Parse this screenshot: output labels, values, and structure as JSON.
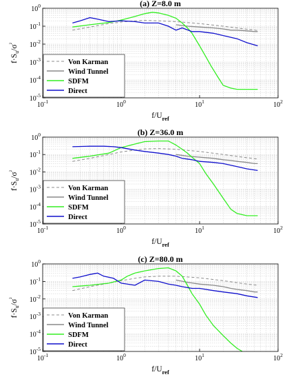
{
  "colors": {
    "von_karman": "#8c8c8c",
    "wind_tunnel": "#8a8a8a",
    "sdfm": "#33ee22",
    "direct": "#1010cc",
    "grid": "#c8c8c8"
  },
  "chart_data": [
    {
      "type": "line",
      "title": "(a) Z=8.0 m",
      "xscale": "log",
      "yscale": "log",
      "xlim": [
        0.1,
        100
      ],
      "ylim": [
        1e-05,
        1
      ],
      "xticks": [
        "10^-1",
        "10^0",
        "10^1",
        "10^2"
      ],
      "yticks": [
        "10^0",
        "10^-1",
        "10^-2",
        "10^-3",
        "10^-4",
        "10^-5"
      ],
      "ylabel": "f·Su/σ²",
      "xlabel": "f/Uref",
      "grid": true,
      "legend": "bottom-left",
      "series": [
        {
          "name": "Von Karman",
          "style": "dashed",
          "x": [
            0.24,
            0.4,
            0.7,
            1,
            1.5,
            2,
            3,
            5,
            10,
            20,
            40,
            55
          ],
          "y": [
            0.06,
            0.09,
            0.14,
            0.17,
            0.2,
            0.21,
            0.2,
            0.18,
            0.14,
            0.1,
            0.068,
            0.058
          ]
        },
        {
          "name": "Wind Tunnel",
          "style": "solid",
          "x": [
            5,
            7,
            10,
            15,
            20,
            25,
            30,
            40,
            50,
            55
          ],
          "y": [
            0.12,
            0.1,
            0.09,
            0.08,
            0.07,
            0.06,
            0.06,
            0.055,
            0.05,
            0.05
          ]
        },
        {
          "name": "SDFM",
          "style": "solid",
          "x": [
            0.24,
            0.4,
            0.7,
            1,
            1.5,
            2,
            2.5,
            3,
            4,
            5,
            6,
            7,
            8,
            10,
            12,
            14,
            17,
            20,
            25,
            30,
            40,
            55
          ],
          "y": [
            0.09,
            0.12,
            0.16,
            0.22,
            0.35,
            0.5,
            0.6,
            0.55,
            0.4,
            0.28,
            0.15,
            0.08,
            0.04,
            0.008,
            0.002,
            0.0006,
            0.00015,
            5e-05,
            3.5e-05,
            3e-05,
            3e-05,
            3e-05
          ]
        },
        {
          "name": "Direct",
          "style": "solid",
          "x": [
            0.24,
            0.3,
            0.4,
            0.5,
            0.7,
            1,
            1.5,
            2,
            3,
            4,
            5,
            6,
            8,
            10,
            15,
            20,
            30,
            40,
            55
          ],
          "y": [
            0.15,
            0.2,
            0.3,
            0.25,
            0.18,
            0.2,
            0.18,
            0.15,
            0.15,
            0.1,
            0.06,
            0.08,
            0.05,
            0.05,
            0.04,
            0.03,
            0.02,
            0.012,
            0.008
          ]
        }
      ]
    },
    {
      "type": "line",
      "title": "(b) Z=36.0 m",
      "xscale": "log",
      "yscale": "log",
      "xlim": [
        0.1,
        100
      ],
      "ylim": [
        1e-05,
        1
      ],
      "xticks": [
        "10^-1",
        "10^0",
        "10^1",
        "10^2"
      ],
      "yticks": [
        "10^0",
        "10^-1",
        "10^-2",
        "10^-3",
        "10^-4",
        "10^-5"
      ],
      "ylabel": "f·Su/σ²",
      "xlabel": "f/Uref",
      "grid": true,
      "legend": "bottom-left",
      "series": [
        {
          "name": "Von Karman",
          "style": "dashed",
          "x": [
            0.24,
            0.4,
            0.7,
            1,
            1.5,
            2,
            3,
            5,
            10,
            20,
            40,
            55
          ],
          "y": [
            0.04,
            0.06,
            0.1,
            0.14,
            0.18,
            0.21,
            0.22,
            0.2,
            0.15,
            0.1,
            0.065,
            0.055
          ]
        },
        {
          "name": "Wind Tunnel",
          "style": "solid",
          "x": [
            5,
            7,
            10,
            15,
            20,
            25,
            30,
            40,
            50,
            55
          ],
          "y": [
            0.1,
            0.08,
            0.07,
            0.06,
            0.05,
            0.045,
            0.04,
            0.035,
            0.03,
            0.03
          ]
        },
        {
          "name": "SDFM",
          "style": "solid",
          "x": [
            0.24,
            0.4,
            0.7,
            1,
            1.5,
            2,
            3,
            4,
            5,
            6,
            7,
            8,
            10,
            12,
            15,
            20,
            25,
            30,
            40,
            55
          ],
          "y": [
            0.06,
            0.08,
            0.12,
            0.25,
            0.4,
            0.55,
            0.6,
            0.6,
            0.35,
            0.2,
            0.12,
            0.07,
            0.03,
            0.008,
            0.002,
            0.0003,
            7e-05,
            4e-05,
            3e-05,
            3e-05
          ]
        },
        {
          "name": "Direct",
          "style": "solid",
          "x": [
            0.24,
            0.4,
            0.6,
            0.8,
            1,
            1.5,
            2,
            3,
            4,
            5,
            6,
            8,
            10,
            15,
            20,
            30,
            40,
            55
          ],
          "y": [
            0.28,
            0.3,
            0.3,
            0.28,
            0.25,
            0.18,
            0.15,
            0.12,
            0.1,
            0.08,
            0.06,
            0.05,
            0.04,
            0.035,
            0.03,
            0.02,
            0.015,
            0.012
          ]
        }
      ]
    },
    {
      "type": "line",
      "title": "(c) Z=80.0 m",
      "xscale": "log",
      "yscale": "log",
      "xlim": [
        0.1,
        100
      ],
      "ylim": [
        1e-05,
        1
      ],
      "xticks": [
        "10^-1",
        "10^0",
        "10^1",
        "10^2"
      ],
      "yticks": [
        "10^0",
        "10^-1",
        "10^-2",
        "10^-3",
        "10^-4",
        "10^-5"
      ],
      "ylabel": "f·Su/σ²",
      "xlabel": "f/Uref",
      "grid": true,
      "legend": "bottom-left",
      "series": [
        {
          "name": "Von Karman",
          "style": "dashed",
          "x": [
            0.24,
            0.4,
            0.7,
            1,
            1.5,
            2,
            3,
            5,
            10,
            20,
            40,
            55
          ],
          "y": [
            0.03,
            0.05,
            0.08,
            0.11,
            0.15,
            0.18,
            0.2,
            0.2,
            0.16,
            0.11,
            0.07,
            0.06
          ]
        },
        {
          "name": "Wind Tunnel",
          "style": "solid",
          "x": [
            5,
            7,
            10,
            15,
            20,
            25,
            30,
            40,
            50,
            55
          ],
          "y": [
            0.12,
            0.09,
            0.07,
            0.06,
            0.05,
            0.04,
            0.035,
            0.03,
            0.025,
            0.025
          ]
        },
        {
          "name": "SDFM",
          "style": "solid",
          "x": [
            0.24,
            0.4,
            0.7,
            1,
            1.2,
            1.5,
            2,
            3,
            4,
            5,
            6,
            7,
            8,
            10,
            12,
            15,
            20,
            25,
            30,
            35
          ],
          "y": [
            0.05,
            0.06,
            0.08,
            0.12,
            0.2,
            0.3,
            0.4,
            0.55,
            0.6,
            0.4,
            0.2,
            0.06,
            0.02,
            0.005,
            0.0012,
            0.0003,
            8e-05,
            3e-05,
            1.5e-05,
            1e-05
          ]
        },
        {
          "name": "Direct",
          "style": "solid",
          "x": [
            0.24,
            0.3,
            0.4,
            0.5,
            0.6,
            0.8,
            1,
            1.5,
            2,
            3,
            4,
            5,
            6,
            8,
            10,
            15,
            20,
            30,
            40,
            55
          ],
          "y": [
            0.15,
            0.18,
            0.25,
            0.3,
            0.2,
            0.15,
            0.08,
            0.06,
            0.12,
            0.1,
            0.07,
            0.06,
            0.05,
            0.04,
            0.04,
            0.03,
            0.025,
            0.02,
            0.015,
            0.012
          ]
        }
      ]
    }
  ]
}
